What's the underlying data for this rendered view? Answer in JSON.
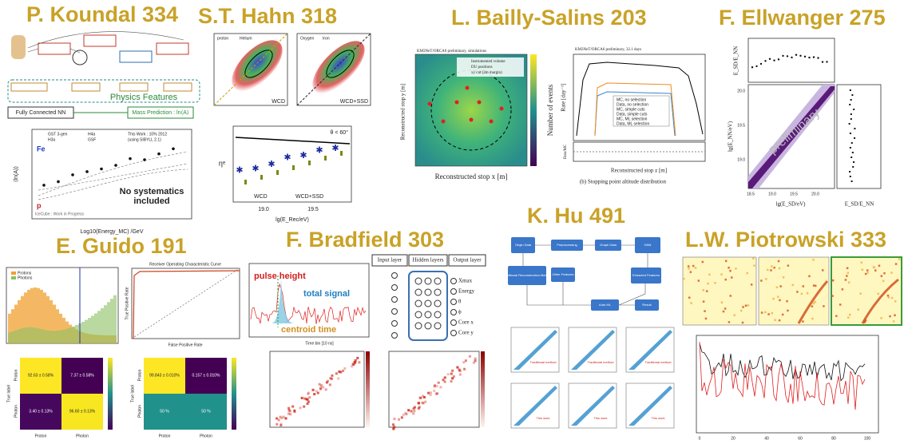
{
  "koundal": {
    "title": "P. Koundal 334",
    "physics": "Physics Features",
    "fcnn": "Fully Connected NN",
    "mass": "Mass Prediction : ln⟨A⟩",
    "fe": "Fe",
    "p": "p",
    "nosys1": "No systematics",
    "nosys2": "included",
    "xlabel": "Log10(Energy_MC) /GeV",
    "ylabel": "⟨ln(A)⟩",
    "note": "IceCube : Work in Progress",
    "legend": [
      "GST 3-gen",
      "H3a",
      "H4a",
      "GSF",
      "This Work : 10% 2012",
      "(using SIBYLL 2.1)"
    ]
  },
  "hahn": {
    "title": "S.T. Hahn 318",
    "legend1": [
      "proton",
      "Helium"
    ],
    "legend2": [
      "Oxygen",
      "Iron"
    ],
    "tag1": "WCD",
    "tag2": "WCD+SSD",
    "cut": "θ < 60°",
    "ylabel": "ηᵉ",
    "xlabel": "lg(E_Rec/eV)",
    "leg3": [
      "WCD",
      "WCD+SSD"
    ],
    "xticks": [
      "19.0",
      "19.5"
    ]
  },
  "bailly": {
    "title": "L. Bailly-Salins 203",
    "heading": "KM3NeT/ORCA6 preliminary, simulations",
    "legend": [
      "Instrumented volume",
      "DU positions",
      "xy cut (2m margin)"
    ],
    "xlabel": "Reconstructed stop x [m]",
    "ylabel": "Reconstructed stop y [m]",
    "cbar": "Number of events",
    "heading2": "KM3NeT/ORCA6 preliminary, 32.1 days",
    "ylabel2": "Rate [day⁻¹]",
    "ratio": "Data/MC",
    "xlabel2": "Reconstructed stop z [m]",
    "legend2": [
      "MC, no selection",
      "Data, no selection",
      "MC, simple cuts",
      "Data, simple cuts",
      "MC, ML selection",
      "Data, ML selection"
    ],
    "caption": "(b) Stopping point altitude distribution"
  },
  "ellwanger": {
    "title": "F. Ellwanger 275",
    "ytop": "E_SD/E_NN",
    "wm": "preliminary",
    "ylabel": "lg(E_NN/eV)",
    "xlabel": "lg(E_SD/eV)",
    "xlabel2": "E_SD/E_NN",
    "xticks": [
      "18.5",
      "19.0",
      "19.5",
      "20.0"
    ],
    "yticks": [
      "19.0",
      "19.5",
      "20.0"
    ]
  },
  "hu": {
    "title": "K. Hu 491",
    "nodes": [
      "Origin Data",
      "Preprocessing",
      "Graph Data",
      "GNN",
      "Traditional Reconstruction Method",
      "Other Features",
      "Extracted Features",
      "Auto ML",
      "Result"
    ],
    "tags": [
      "Traditional method",
      "This work"
    ]
  },
  "guido": {
    "title": "E. Guido 191",
    "legend": [
      "Protons",
      "Photons"
    ],
    "roc": "Receiver Operating Characteristic Curve",
    "rocx": "False Positive Rate",
    "rocy": "True Positive Rate",
    "cm1": [
      "92.63 ± 0.58%",
      "7.37 ± 0.58%",
      "3.40 ± 0.13%",
      "96.60 ± 0.13%"
    ],
    "cm2": [
      "99.843 ± 0.010%",
      "0.157 ± 0.010%",
      "50 %",
      "50 %"
    ],
    "classes": [
      "Proton",
      "Photon"
    ],
    "truelabel": "True label"
  },
  "bradfield": {
    "title": "F. Bradfield 303",
    "pulse": "pulse height",
    "total": "total signal",
    "centroid": "centroid time",
    "xlabel": "Time bin [10 ns]",
    "layers": [
      "Input layer",
      "Hidden layers",
      "Output layer"
    ],
    "outputs": [
      "Xmax",
      "Energy",
      "θ",
      "ϕ",
      "Core x",
      "Core y"
    ]
  },
  "piotrowski": {
    "title": "L.W. Piotrowski 333",
    "xticks": [
      "0",
      "20",
      "40",
      "60",
      "80",
      "100"
    ]
  }
}
